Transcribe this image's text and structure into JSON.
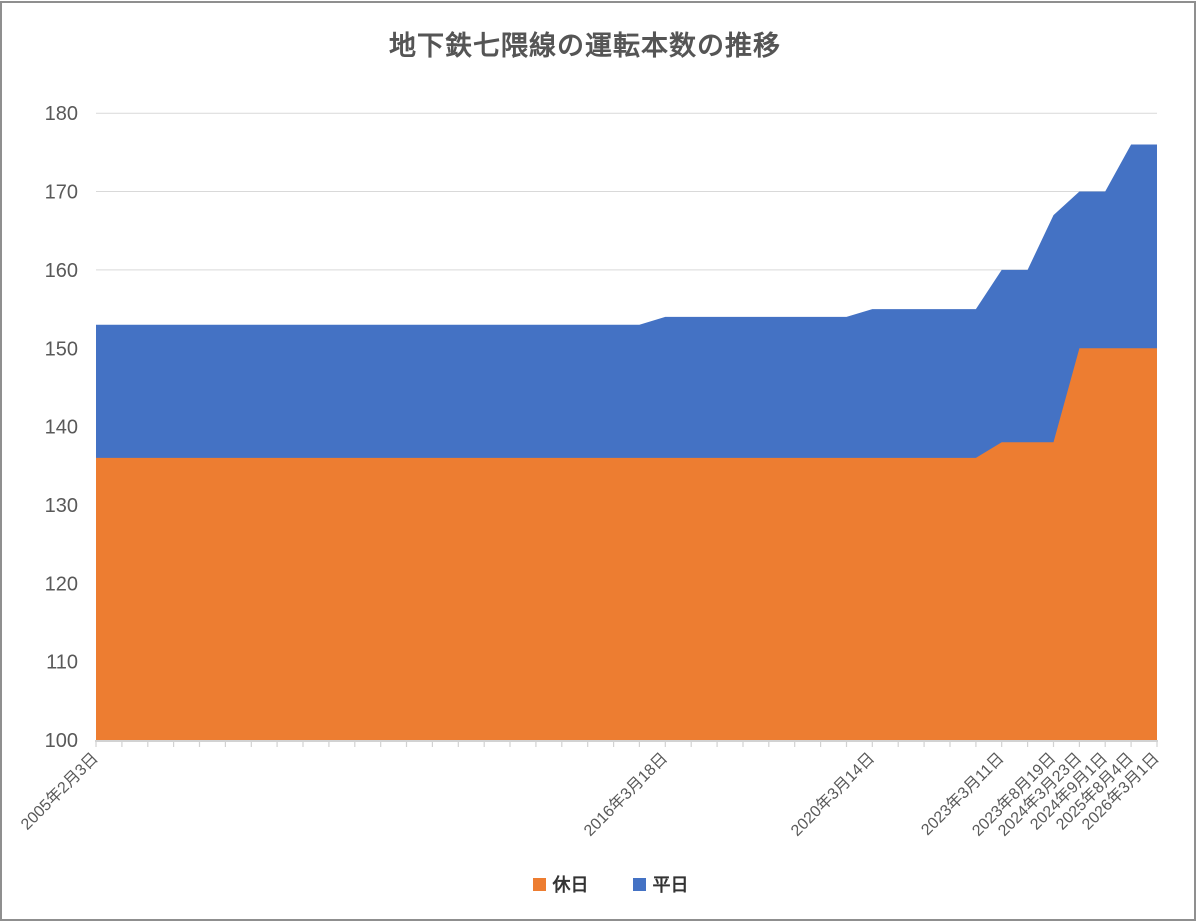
{
  "chart_data": {
    "type": "area",
    "mode": "overlapping-areas",
    "title": "地下鉄七隈線の運転本数の推移",
    "xlabel": "",
    "ylabel": "",
    "grid": true,
    "legend_position": "bottom",
    "y_axis": {
      "min": 100,
      "max": 180,
      "interval": 10,
      "ticks": [
        100,
        110,
        120,
        130,
        140,
        150,
        160,
        170,
        180
      ]
    },
    "x_axis": {
      "point_count": 42,
      "labels": [
        {
          "index": 0,
          "label": "2005年2月3日"
        },
        {
          "index": 22,
          "label": "2016年3月18日"
        },
        {
          "index": 30,
          "label": "2020年3月14日"
        },
        {
          "index": 35,
          "label": "2023年3月11日"
        },
        {
          "index": 37,
          "label": "2023年8月19日"
        },
        {
          "index": 38,
          "label": "2024年3月23日"
        },
        {
          "index": 39,
          "label": "2024年9月1日"
        },
        {
          "index": 40,
          "label": "2025年8月4日"
        },
        {
          "index": 41,
          "label": "2026年3月1日"
        }
      ]
    },
    "series": [
      {
        "name": "休日",
        "color": "#ED7D31",
        "breakpoints": [
          [
            0,
            136
          ],
          [
            34,
            136
          ],
          [
            35,
            138
          ],
          [
            37,
            138
          ],
          [
            38,
            150
          ],
          [
            41,
            150
          ]
        ]
      },
      {
        "name": "平日",
        "color": "#4472C4",
        "breakpoints": [
          [
            0,
            153
          ],
          [
            21,
            153
          ],
          [
            22,
            154
          ],
          [
            29,
            154
          ],
          [
            30,
            155
          ],
          [
            34,
            155
          ],
          [
            35,
            160
          ],
          [
            36,
            160
          ],
          [
            37,
            167
          ],
          [
            38,
            170
          ],
          [
            39,
            170
          ],
          [
            40,
            176
          ],
          [
            41,
            176
          ]
        ]
      }
    ],
    "values_at_labeled_dates": {
      "dates": [
        "2005年2月3日",
        "2016年3月18日",
        "2020年3月14日",
        "2023年3月11日",
        "2023年8月19日",
        "2024年3月23日",
        "2024年9月1日",
        "2025年8月4日",
        "2026年3月1日"
      ],
      "休日": [
        136,
        136,
        136,
        138,
        138,
        150,
        150,
        150,
        150
      ],
      "平日": [
        153,
        154,
        155,
        160,
        167,
        170,
        170,
        176,
        176
      ]
    },
    "style": {
      "gridline_color": "#D9D9D9",
      "axis_color": "#D2D2D2",
      "tick_label_color": "#595959",
      "title_color": "#555555",
      "legend_text_color": "#333333",
      "frame_border_color": "#8F8F8F"
    }
  }
}
